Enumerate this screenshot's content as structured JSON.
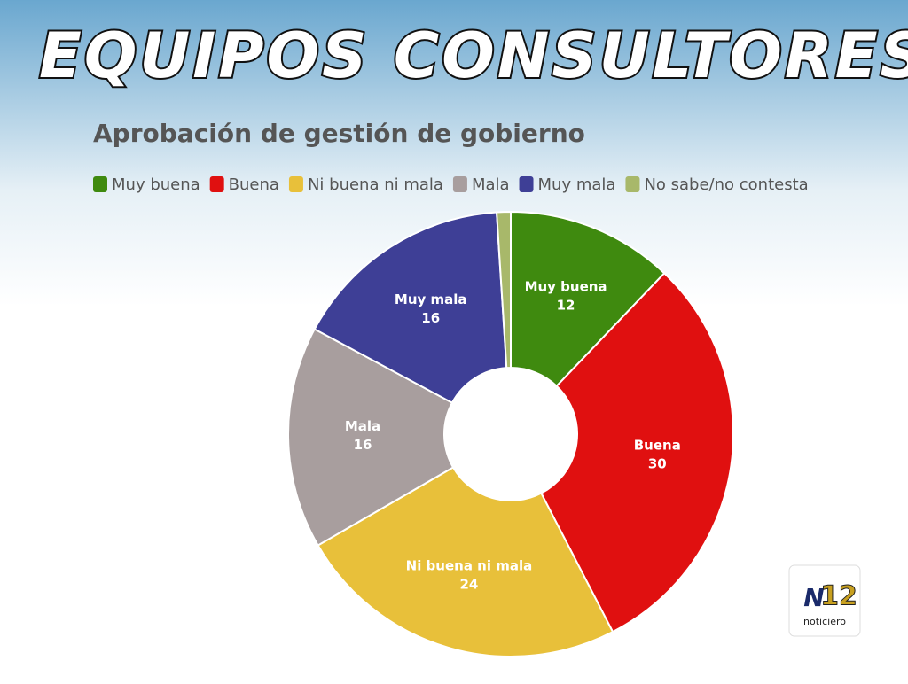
{
  "banner": "EQUIPOS CONSULTORES",
  "logo": {
    "n": "N",
    "num": "12",
    "label": "noticiero"
  },
  "chart_data": {
    "type": "donut",
    "title": "Aprobación de gestión de gobierno",
    "categories": [
      "Muy buena",
      "Buena",
      "Ni buena ni mala",
      "Mala",
      "Muy mala",
      "No sabe/no contesta"
    ],
    "values": [
      12,
      30,
      24,
      16,
      16,
      1
    ],
    "colors": [
      "#3f8a0f",
      "#e01010",
      "#e8c03a",
      "#a89e9e",
      "#3e3f96",
      "#a8b86a"
    ],
    "data_labels": [
      true,
      true,
      true,
      true,
      true,
      false
    ]
  }
}
